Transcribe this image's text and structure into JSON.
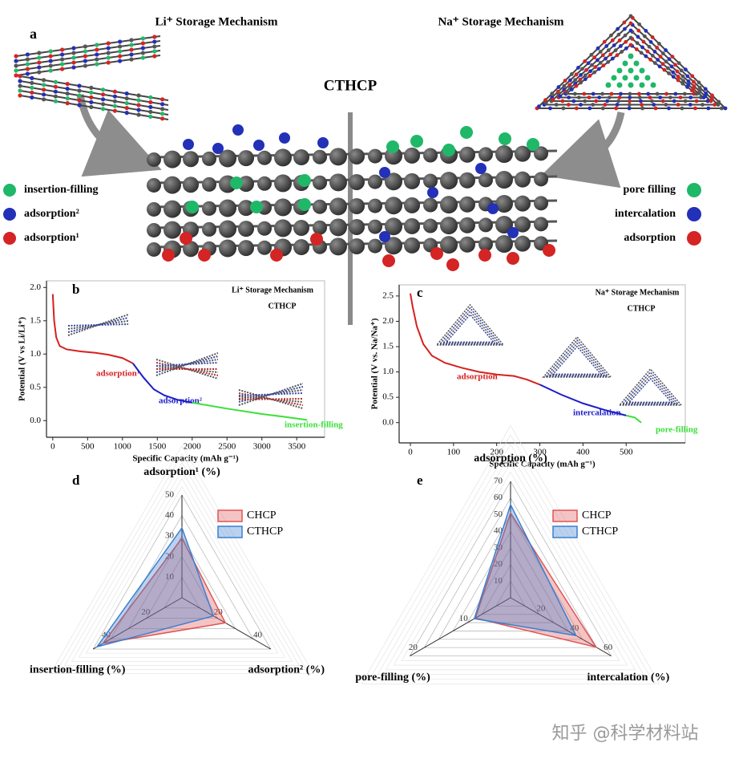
{
  "panel_a": {
    "label": "a",
    "left_title": "Li⁺ Storage Mechanism",
    "right_title": "Na⁺ Storage Mechanism",
    "center_title": "CTHCP",
    "left_legend": [
      {
        "label": "insertion-filling",
        "color": "#1fb868"
      },
      {
        "label": "adsorption²",
        "color": "#2330b8"
      },
      {
        "label": "adsorption¹",
        "color": "#d42424"
      }
    ],
    "right_legend": [
      {
        "label": "pore filling",
        "color": "#1fb868"
      },
      {
        "label": "intercalation",
        "color": "#2330b8"
      },
      {
        "label": "adsorption",
        "color": "#d42424"
      }
    ]
  },
  "watermark": "知乎 @科学材料站",
  "chart_data": [
    {
      "type": "line",
      "label": "b",
      "title": "Li⁺ Storage Mechanism",
      "subtitle": "CTHCP",
      "xlabel": "Specific Capacity (mAh g⁻¹)",
      "ylabel": "Potential (V vs Li/Li⁺)",
      "xlim": [
        -90,
        3900
      ],
      "ylim": [
        -0.25,
        2.1
      ],
      "xticks": [
        0,
        500,
        1000,
        1500,
        2000,
        2500,
        3000,
        3500
      ],
      "yticks": [
        {
          "value": 0,
          "label": "0.0"
        },
        0.5,
        {
          "value": 1,
          "label": "1.0"
        },
        1.5,
        {
          "value": 2,
          "label": "2.0"
        }
      ],
      "series": [
        {
          "name": "adsorption¹",
          "color": "#d62020",
          "x": [
            0,
            20,
            50,
            100,
            200,
            400,
            600,
            800,
            1000,
            1150
          ],
          "values": [
            1.9,
            1.5,
            1.25,
            1.12,
            1.07,
            1.04,
            1.02,
            0.99,
            0.94,
            0.86
          ]
        },
        {
          "name": "adsorption²",
          "color": "#1c1cc8",
          "x": [
            1150,
            1300,
            1450,
            1600,
            1800,
            2000
          ],
          "values": [
            0.86,
            0.65,
            0.47,
            0.38,
            0.31,
            0.27
          ]
        },
        {
          "name": "insertion-filling",
          "color": "#3ae03a",
          "x": [
            2000,
            2500,
            3000,
            3300,
            3650
          ],
          "values": [
            0.27,
            0.18,
            0.1,
            0.06,
            0.01
          ]
        }
      ]
    },
    {
      "type": "line",
      "label": "c",
      "title": "Na⁺ Storage Mechanism",
      "subtitle": "CTHCP",
      "xlabel": "Specific Capacity (mAh g⁻¹)",
      "ylabel": "Potential (V vs. Na/Na⁺)",
      "xlim": [
        -26,
        637
      ],
      "ylim": [
        -0.4,
        2.72
      ],
      "xticks": [
        0,
        100,
        200,
        300,
        400,
        500
      ],
      "yticks": [
        {
          "value": 0,
          "label": "0.0"
        },
        0.5,
        {
          "value": 1,
          "label": "1.0"
        },
        1.5,
        {
          "value": 2,
          "label": "2.0"
        },
        2.5
      ],
      "series": [
        {
          "name": "adsorption",
          "color": "#d62020",
          "x": [
            0,
            5,
            15,
            30,
            50,
            80,
            120,
            160,
            200,
            240,
            270,
            300
          ],
          "values": [
            2.55,
            2.3,
            1.9,
            1.55,
            1.32,
            1.18,
            1.08,
            1.0,
            0.95,
            0.92,
            0.85,
            0.75
          ]
        },
        {
          "name": "intercalation",
          "color": "#1c1cc8",
          "x": [
            300,
            350,
            400,
            450,
            500
          ],
          "values": [
            0.75,
            0.55,
            0.38,
            0.25,
            0.14
          ]
        },
        {
          "name": "pore-filling",
          "color": "#3ae03a",
          "x": [
            500,
            520,
            535
          ],
          "values": [
            0.14,
            0.1,
            0.0
          ]
        }
      ]
    },
    {
      "type": "radar",
      "label": "d",
      "axes": [
        {
          "name": "adsorption¹ (%)",
          "lim": [
            0,
            50
          ],
          "ticks": [
            10,
            20,
            30,
            40,
            50
          ]
        },
        {
          "name": "adsorption² (%)",
          "lim": [
            0,
            45
          ],
          "ticks": [
            20,
            40
          ]
        },
        {
          "name": "insertion-filling (%)",
          "lim": [
            0,
            45
          ],
          "ticks": [
            20,
            40
          ]
        }
      ],
      "series": [
        {
          "name": "CHCP",
          "color": "#e05555",
          "values": [
            29,
            22,
            40
          ]
        },
        {
          "name": "CTHCP",
          "color": "#3a7fd0",
          "values": [
            34,
            16,
            43
          ]
        }
      ]
    },
    {
      "type": "radar",
      "label": "e",
      "axes": [
        {
          "name": "adsorption (%)",
          "lim": [
            0,
            70
          ],
          "ticks": [
            10,
            20,
            30,
            40,
            50,
            60,
            70
          ]
        },
        {
          "name": "intercalation (%)",
          "lim": [
            0,
            60
          ],
          "ticks": [
            20,
            40,
            60
          ]
        },
        {
          "name": "pore-filling (%)",
          "lim": [
            0,
            20
          ],
          "ticks": [
            10,
            20
          ]
        }
      ],
      "series": [
        {
          "name": "CHCP",
          "color": "#e05555",
          "values": [
            51,
            51,
            7
          ]
        },
        {
          "name": "CTHCP",
          "color": "#3a7fd0",
          "values": [
            56,
            39,
            7.2
          ]
        }
      ]
    }
  ]
}
